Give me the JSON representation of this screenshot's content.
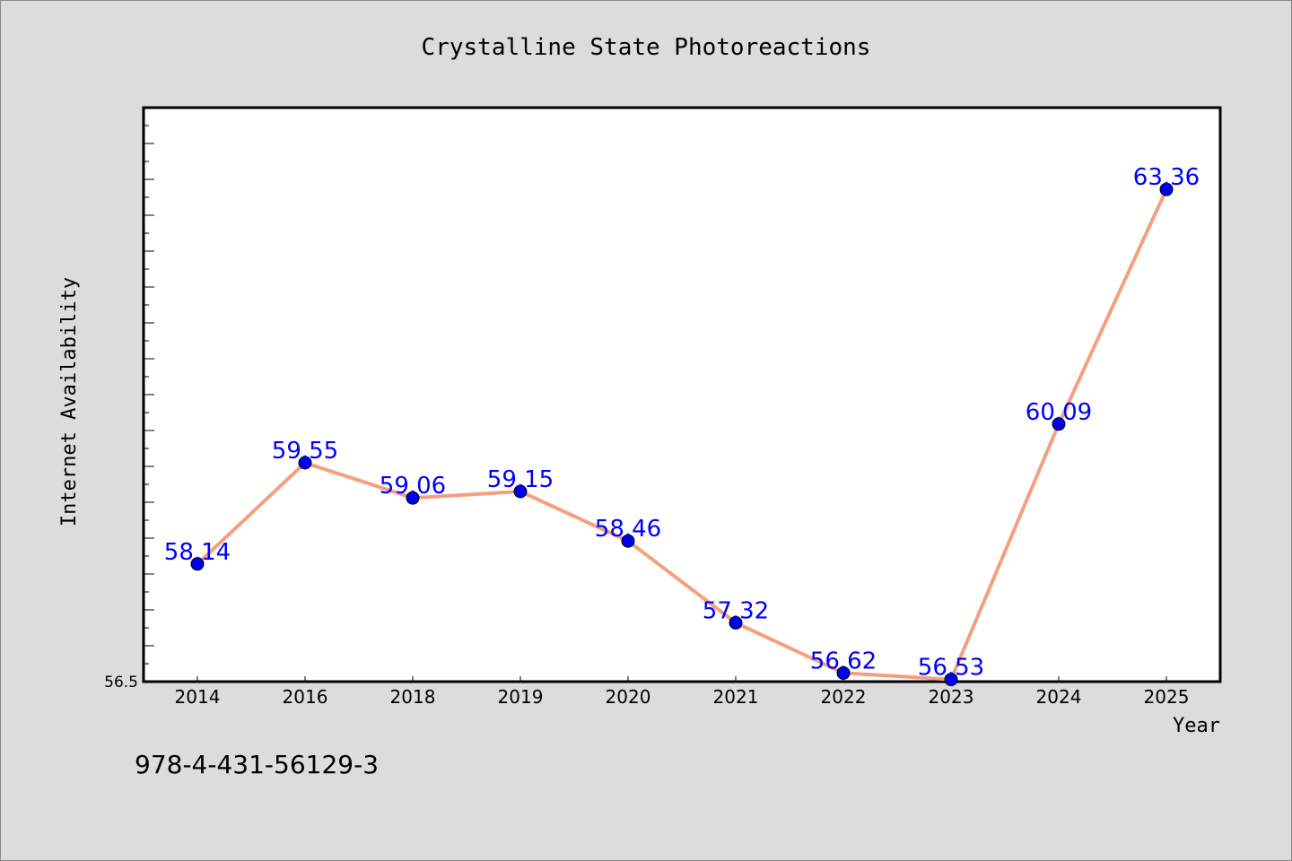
{
  "chart_data": {
    "type": "line",
    "title": "Crystalline State Photoreactions",
    "xlabel": "Year",
    "ylabel": "Internet Availability",
    "categories": [
      "2014",
      "2016",
      "2018",
      "2019",
      "2020",
      "2021",
      "2022",
      "2023",
      "2024",
      "2025"
    ],
    "series": [
      {
        "values": [
          58.14,
          59.55,
          59.06,
          59.15,
          58.46,
          57.32,
          56.62,
          56.53,
          60.09,
          63.36
        ]
      }
    ],
    "data_labels": [
      "58.14",
      "59.55",
      "59.06",
      "59.15",
      "58.46",
      "57.32",
      "56.62",
      "56.53",
      "60.09",
      "63.36"
    ],
    "ylim": [
      56.5,
      64.5
    ],
    "ytick_labels": [
      "56.5"
    ],
    "grid": false,
    "legend": "none",
    "colors": {
      "line": "#f4a07f",
      "marker": "#0000ee",
      "data_label": "#0000ff",
      "background": "#dcdcdc",
      "plot_background": "#ffffff"
    }
  },
  "footer": {
    "isbn": "978-4-431-56129-3"
  }
}
